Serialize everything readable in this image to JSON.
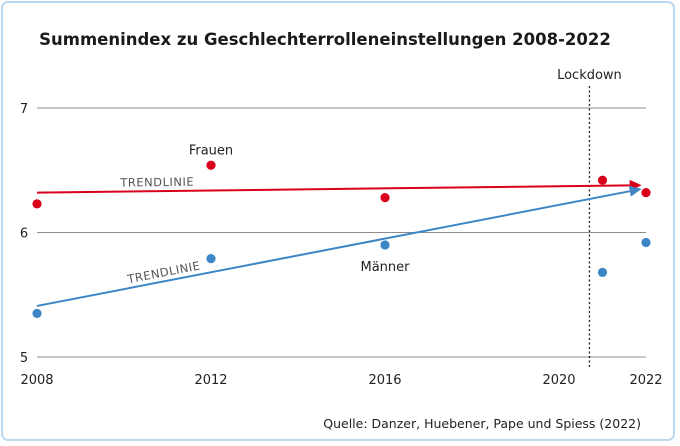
{
  "chart_data": {
    "type": "scatter",
    "title": "Summenindex zu Geschlechterrolleneinstellungen 2008-2022",
    "xlabel": "",
    "ylabel": "",
    "xlim": [
      2008,
      2022
    ],
    "ylim": [
      5,
      7
    ],
    "x_ticks": [
      {
        "value": 2008,
        "label": "2008"
      },
      {
        "value": 2012,
        "label": "2012"
      },
      {
        "value": 2016,
        "label": "2016"
      },
      {
        "value": 2020,
        "label": "2020"
      },
      {
        "value": 2022,
        "label": "2022"
      }
    ],
    "y_ticks": [
      {
        "value": 5,
        "label": "5"
      },
      {
        "value": 6,
        "label": "6"
      },
      {
        "value": 7,
        "label": "7"
      }
    ],
    "grid": true,
    "series": [
      {
        "name": "Frauen",
        "color": "#d9001b",
        "points": [
          {
            "x": 2008,
            "y": 6.23
          },
          {
            "x": 2012,
            "y": 6.54
          },
          {
            "x": 2016,
            "y": 6.28
          },
          {
            "x": 2021,
            "y": 6.42
          },
          {
            "x": 2022,
            "y": 6.32
          }
        ],
        "trend": {
          "label": "TRENDLINIE",
          "start": [
            2008,
            6.32
          ],
          "end": [
            2021.9,
            6.38
          ]
        }
      },
      {
        "name": "Männer",
        "color": "#3d86c6",
        "points": [
          {
            "x": 2008,
            "y": 5.35
          },
          {
            "x": 2012,
            "y": 5.79
          },
          {
            "x": 2016,
            "y": 5.9
          },
          {
            "x": 2021,
            "y": 5.68
          },
          {
            "x": 2022,
            "y": 5.92
          }
        ],
        "trend": {
          "label": "TRENDLINIE",
          "start": [
            2008,
            5.41
          ],
          "end": [
            2021.9,
            6.35
          ]
        }
      }
    ],
    "annotations": [
      {
        "text": "Lockdown",
        "x": 2020.7
      }
    ],
    "source": "Quelle: Danzer, Huebener, Pape und Spiess (2022)"
  }
}
